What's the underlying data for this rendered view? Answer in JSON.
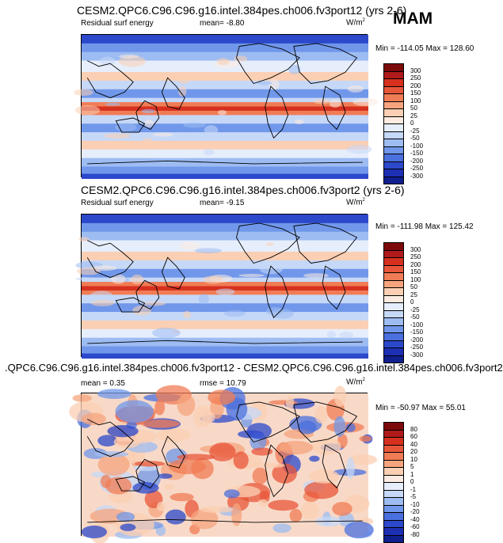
{
  "season": "MAM",
  "panels": [
    {
      "title": "CESM2.QPC6.C96.C96.g16.intel.384pes.ch006.fv3port12 (yrs 2-6)",
      "variable": "Residual surf energy",
      "mean": "mean=  -8.80",
      "rmse": "",
      "units": "W/m",
      "units_sup": "2",
      "minmax": "Min = -114.05 Max = 128.60",
      "colorbar_labels": [
        "300",
        "250",
        "200",
        "150",
        "100",
        "50",
        "25",
        "0",
        "-25",
        "-50",
        "-100",
        "-150",
        "-200",
        "-250",
        "-300"
      ]
    },
    {
      "title": "CESM2.QPC6.C96.C96.g16.intel.384pes.ch006.fv3port2 (yrs 2-6)",
      "variable": "Residual surf energy",
      "mean": "mean=  -9.15",
      "rmse": "",
      "units": "W/m",
      "units_sup": "2",
      "minmax": "Min = -111.98 Max = 125.42",
      "colorbar_labels": [
        "300",
        "250",
        "200",
        "150",
        "100",
        "50",
        "25",
        "0",
        "-25",
        "-50",
        "-100",
        "-150",
        "-200",
        "-250",
        "-300"
      ]
    },
    {
      "title": ".QPC6.C96.C96.g16.intel.384pes.ch006.fv3port12 - CESM2.QPC6.C96.C96.g16.intel.384pes.ch006.fv3port2",
      "variable": "",
      "mean": "mean =   0.35",
      "rmse": "rmse =  10.79",
      "units": "W/m",
      "units_sup": "2",
      "minmax": "Min = -50.97 Max =  55.01",
      "colorbar_labels": [
        "80",
        "60",
        "40",
        "20",
        "10",
        "5",
        "1",
        "0",
        "-1",
        "-5",
        "-10",
        "-20",
        "-40",
        "-60",
        "-80"
      ]
    }
  ],
  "colors": {
    "scale": [
      "#7d0a0a",
      "#b01a1a",
      "#d6301f",
      "#e8563a",
      "#f07c55",
      "#f6a47e",
      "#fbcfb3",
      "#fcebe0",
      "#e6eefc",
      "#c6d8f7",
      "#9dbcf2",
      "#7097ea",
      "#4a6fde",
      "#2c48cb",
      "#1d2fb3",
      "#101f8e"
    ]
  }
}
